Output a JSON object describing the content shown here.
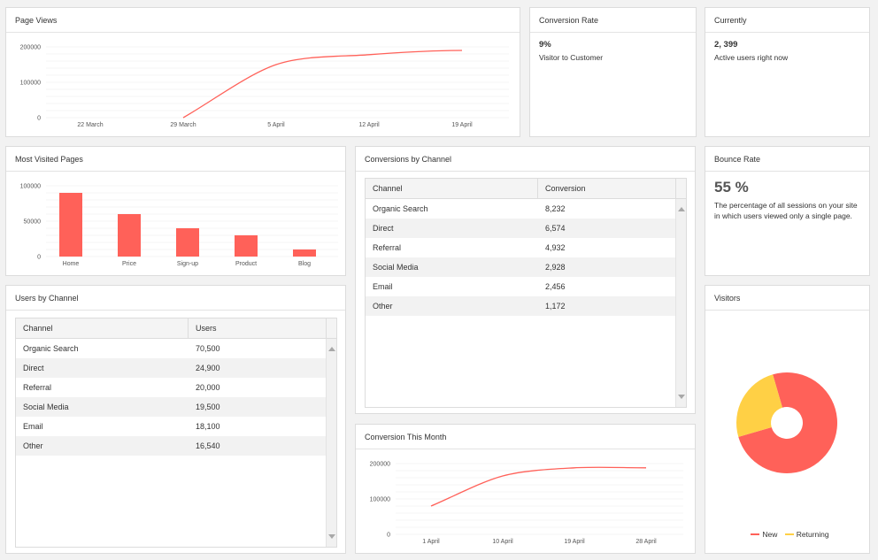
{
  "page_views": {
    "title": "Page Views",
    "chart_data": {
      "type": "line",
      "x_ticks": [
        "22 March",
        "29 March",
        "5 April",
        "12 April",
        "19 April"
      ],
      "y_ticks": [
        "0",
        "100000",
        "200000"
      ],
      "ylim": [
        0,
        200000
      ],
      "x": [
        "29 March",
        "5 April",
        "12 April",
        "19 April"
      ],
      "values": [
        0,
        150000,
        178000,
        190000
      ]
    }
  },
  "conversion_rate": {
    "title": "Conversion Rate",
    "value": "9%",
    "desc": "Visitor to Customer"
  },
  "currently": {
    "title": "Currently",
    "value": "2, 399",
    "desc": "Active users right now"
  },
  "most_visited": {
    "title": "Most Visited Pages",
    "chart_data": {
      "type": "bar",
      "categories": [
        "Home",
        "Price",
        "Sign-up",
        "Product",
        "Blog"
      ],
      "values": [
        90000,
        60000,
        40000,
        30000,
        10000
      ],
      "y_ticks": [
        "0",
        "50000",
        "100000"
      ],
      "ylim": [
        0,
        100000
      ]
    }
  },
  "conversions_by_channel": {
    "title": "Conversions by Channel",
    "columns": [
      "Channel",
      "Conversion"
    ],
    "rows": [
      [
        "Organic Search",
        "8,232"
      ],
      [
        "Direct",
        "6,574"
      ],
      [
        "Referral",
        "4,932"
      ],
      [
        "Social Media",
        "2,928"
      ],
      [
        "Email",
        "2,456"
      ],
      [
        "Other",
        "1,172"
      ]
    ]
  },
  "bounce_rate": {
    "title": "Bounce Rate",
    "value": "55 %",
    "desc": "The percentage of all sessions on your site in which users viewed only a single page."
  },
  "users_by_channel": {
    "title": "Users by Channel",
    "columns": [
      "Channel",
      "Users"
    ],
    "rows": [
      [
        "Organic Search",
        "70,500"
      ],
      [
        "Direct",
        "24,900"
      ],
      [
        "Referral",
        "20,000"
      ],
      [
        "Social Media",
        "19,500"
      ],
      [
        "Email",
        "18,100"
      ],
      [
        "Other",
        "16,540"
      ]
    ]
  },
  "conversion_month": {
    "title": "Conversion This Month",
    "chart_data": {
      "type": "line",
      "x_ticks": [
        "1 April",
        "10 April",
        "19 April",
        "28 April"
      ],
      "y_ticks": [
        "0",
        "100000",
        "200000"
      ],
      "ylim": [
        0,
        200000
      ],
      "x": [
        "1 April",
        "10 April",
        "19 April",
        "28 April"
      ],
      "values": [
        80000,
        165000,
        188000,
        188000
      ]
    }
  },
  "visitors": {
    "title": "Visitors",
    "chart_data": {
      "type": "pie",
      "labels": [
        "New",
        "Returning"
      ],
      "values": [
        75,
        25
      ]
    },
    "legend": [
      "New",
      "Returning"
    ]
  },
  "colors": {
    "accent": "#ff6159",
    "secondary": "#ffd045",
    "grid": "#ececec"
  }
}
